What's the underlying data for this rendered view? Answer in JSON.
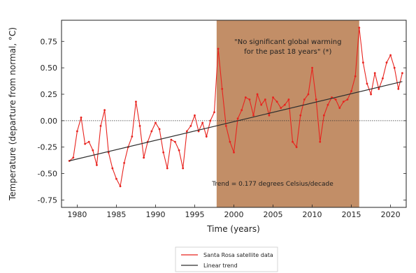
{
  "chart_data": {
    "type": "line",
    "xlabel": "Time (years)",
    "ylabel": "Temperature (departure from normal, °C)",
    "xlim": [
      1978,
      2022
    ],
    "ylim": [
      -0.82,
      0.95
    ],
    "x_ticks": [
      "1980",
      "1985",
      "1990",
      "1995",
      "2000",
      "2005",
      "2010",
      "2015",
      "2020"
    ],
    "y_ticks": [
      "-0.75",
      "-0.50",
      "-0.25",
      "0.00",
      "0.25",
      "0.50",
      "0.75"
    ],
    "zero_line": true,
    "legend_position": "bottom-center",
    "shaded_region": {
      "x_start": 1997.8,
      "x_end": 2016.0,
      "color": "#b77a4c"
    },
    "annotation": "\"No significant global warming\nfor the past 18 years\" (*)",
    "trend_label": "Trend = 0.177 degrees Celsius/decade",
    "series": [
      {
        "name": "Santa Rosa satellite data",
        "color": "#e8231e",
        "x": [
          1979.0,
          1979.5,
          1980.0,
          1980.5,
          1981.0,
          1981.5,
          1982.0,
          1982.5,
          1983.0,
          1983.5,
          1984.0,
          1984.5,
          1985.0,
          1985.5,
          1986.0,
          1986.5,
          1987.0,
          1987.5,
          1988.0,
          1988.5,
          1989.0,
          1989.5,
          1990.0,
          1990.5,
          1991.0,
          1991.5,
          1992.0,
          1992.5,
          1993.0,
          1993.5,
          1994.0,
          1994.5,
          1995.0,
          1995.5,
          1996.0,
          1996.5,
          1997.0,
          1997.5,
          1998.0,
          1998.5,
          1999.0,
          1999.5,
          2000.0,
          2000.5,
          2001.0,
          2001.5,
          2002.0,
          2002.5,
          2003.0,
          2003.5,
          2004.0,
          2004.5,
          2005.0,
          2005.5,
          2006.0,
          2006.5,
          2007.0,
          2007.5,
          2008.0,
          2008.5,
          2009.0,
          2009.5,
          2010.0,
          2010.5,
          2011.0,
          2011.5,
          2012.0,
          2012.5,
          2013.0,
          2013.5,
          2014.0,
          2014.5,
          2015.0,
          2015.5,
          2016.0,
          2016.5,
          2017.0,
          2017.5,
          2018.0,
          2018.5,
          2019.0,
          2019.5,
          2020.0,
          2020.5,
          2021.0,
          2021.5
        ],
        "values": [
          -0.38,
          -0.35,
          -0.1,
          0.03,
          -0.22,
          -0.2,
          -0.28,
          -0.42,
          -0.05,
          0.1,
          -0.3,
          -0.45,
          -0.55,
          -0.62,
          -0.4,
          -0.25,
          -0.15,
          0.18,
          -0.05,
          -0.35,
          -0.2,
          -0.1,
          -0.02,
          -0.08,
          -0.3,
          -0.45,
          -0.18,
          -0.2,
          -0.28,
          -0.45,
          -0.1,
          -0.05,
          0.05,
          -0.1,
          -0.02,
          -0.15,
          0.0,
          0.08,
          0.68,
          0.3,
          -0.05,
          -0.2,
          -0.3,
          0.02,
          0.1,
          0.22,
          0.2,
          0.05,
          0.25,
          0.15,
          0.2,
          0.05,
          0.22,
          0.18,
          0.12,
          0.15,
          0.2,
          -0.2,
          -0.25,
          0.05,
          0.2,
          0.25,
          0.5,
          0.2,
          -0.2,
          0.05,
          0.15,
          0.22,
          0.2,
          0.12,
          0.18,
          0.2,
          0.28,
          0.42,
          0.88,
          0.55,
          0.35,
          0.25,
          0.45,
          0.3,
          0.4,
          0.55,
          0.62,
          0.5,
          0.3,
          0.45
        ]
      },
      {
        "name": "Linear trend",
        "color": "#2d2d2d",
        "x": [
          1979.0,
          2021.5
        ],
        "values": [
          -0.38,
          0.37
        ]
      }
    ]
  }
}
